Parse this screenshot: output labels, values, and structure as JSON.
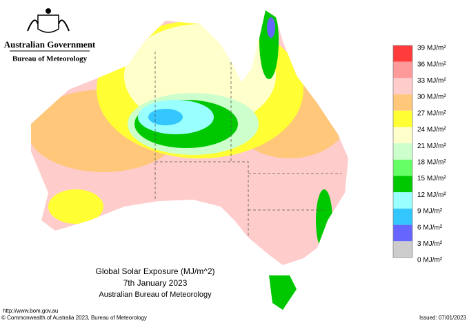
{
  "header": {
    "government": "Australian Government",
    "bureau": "Bureau of Meteorology"
  },
  "title": {
    "line1": "Global Solar Exposure (MJ/m^2)",
    "line2": "7th January 2023",
    "line3": "Australian Bureau of Meteorology"
  },
  "legend": {
    "labels": [
      "39 MJ/m²",
      "36 MJ/m²",
      "33 MJ/m²",
      "30 MJ/m²",
      "27 MJ/m²",
      "24 MJ/m²",
      "21 MJ/m²",
      "18 MJ/m²",
      "15 MJ/m²",
      "12 MJ/m²",
      "9 MJ/m²",
      "6 MJ/m²",
      "3 MJ/m²",
      "0 MJ/m²"
    ],
    "colors": [
      "#ff3b3b",
      "#ff9a9a",
      "#ffcccc",
      "#ffc77a",
      "#ffff33",
      "#ffffcc",
      "#ccffcc",
      "#66ff66",
      "#00c800",
      "#99ffff",
      "#33c6ff",
      "#6666ff",
      "#cccccc"
    ]
  },
  "footer": {
    "url": "http://www.bom.gov.au",
    "copyright": "© Commonwealth of Australia 2023, Bureau of Meteorology",
    "issued": "Issued: 07/01/2023"
  }
}
